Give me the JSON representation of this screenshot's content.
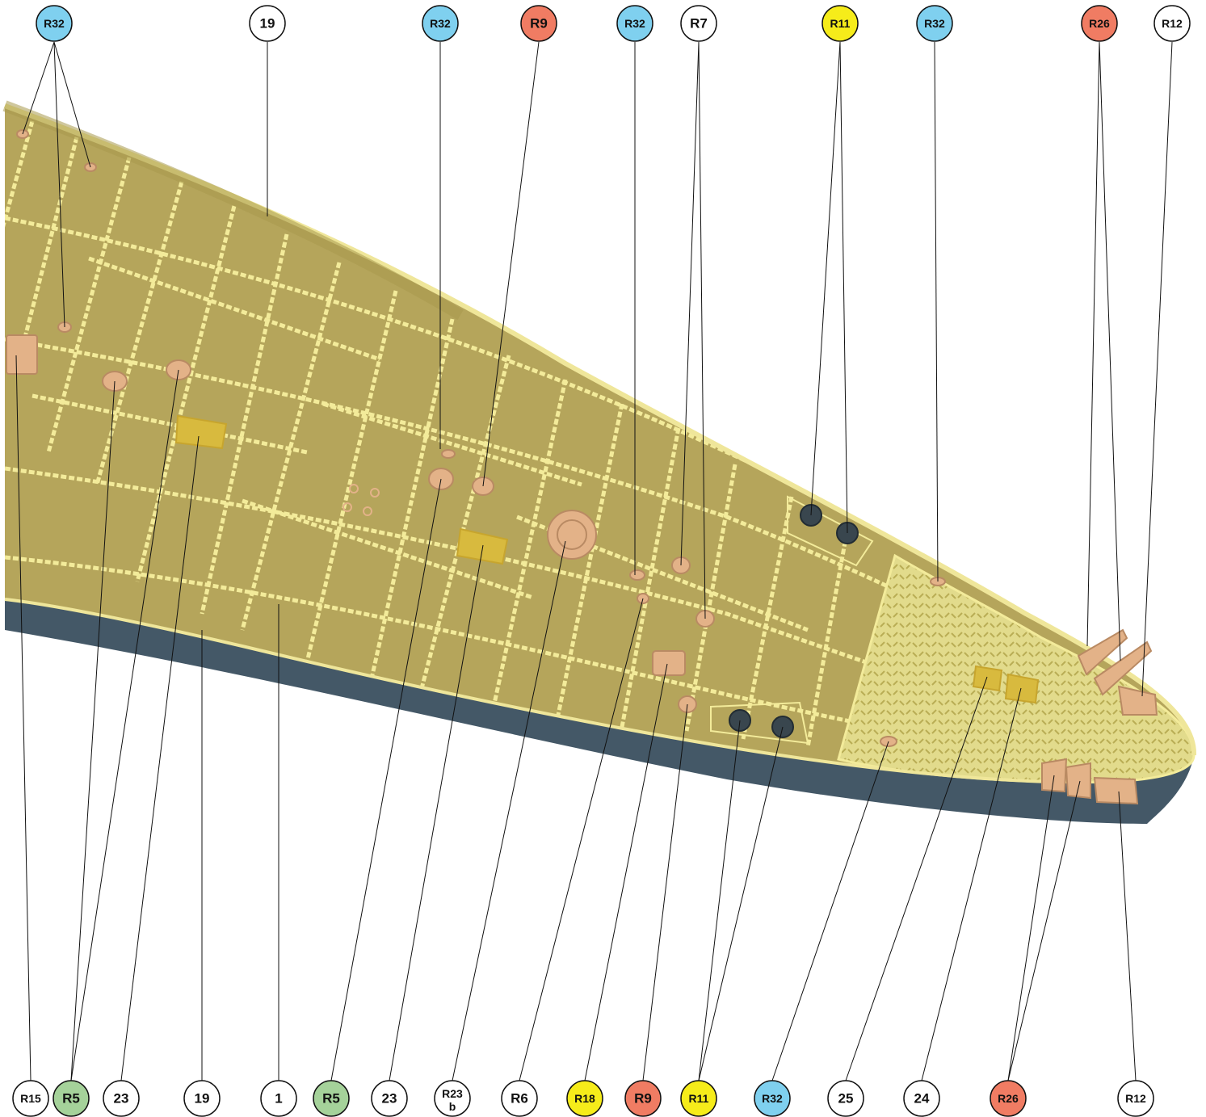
{
  "colors": {
    "deck": "#b5a55b",
    "deck_light": "#c9b96a",
    "grid_line": "#f3eb9a",
    "planking": "#ece79f",
    "hull_side": "#445867",
    "fitting": "#e3b288",
    "fitting_dark": "#b98a63",
    "hatch": "#d8ba3e",
    "bollard": "#39464e",
    "leader": "#111111"
  },
  "legend_colors": {
    "white": "#ffffff",
    "blue": "#7fd0ef",
    "red": "#f07c63",
    "yellow": "#f6ec1a",
    "green": "#a5d29a"
  },
  "top_callouts": [
    {
      "label": "R32",
      "color": "blue"
    },
    {
      "label": "19",
      "color": "white"
    },
    {
      "label": "R32",
      "color": "blue"
    },
    {
      "label": "R9",
      "color": "red"
    },
    {
      "label": "R32",
      "color": "blue"
    },
    {
      "label": "R7",
      "color": "white"
    },
    {
      "label": "R11",
      "color": "yellow"
    },
    {
      "label": "R32",
      "color": "blue"
    },
    {
      "label": "R26",
      "color": "red"
    },
    {
      "label": "R12",
      "color": "white"
    }
  ],
  "bottom_callouts": [
    {
      "label": "R15",
      "color": "white"
    },
    {
      "label": "R5",
      "color": "green"
    },
    {
      "label": "23",
      "color": "white"
    },
    {
      "label": "19",
      "color": "white"
    },
    {
      "label": "1",
      "color": "white"
    },
    {
      "label": "R5",
      "color": "green"
    },
    {
      "label": "23",
      "color": "white"
    },
    {
      "label": "R23",
      "sub": "b",
      "color": "white"
    },
    {
      "label": "R6",
      "color": "white"
    },
    {
      "label": "R18",
      "color": "yellow"
    },
    {
      "label": "R9",
      "color": "red"
    },
    {
      "label": "R11",
      "color": "yellow"
    },
    {
      "label": "R32",
      "color": "blue"
    },
    {
      "label": "25",
      "color": "white"
    },
    {
      "label": "24",
      "color": "white"
    },
    {
      "label": "R26",
      "color": "red"
    },
    {
      "label": "R12",
      "color": "white"
    }
  ]
}
